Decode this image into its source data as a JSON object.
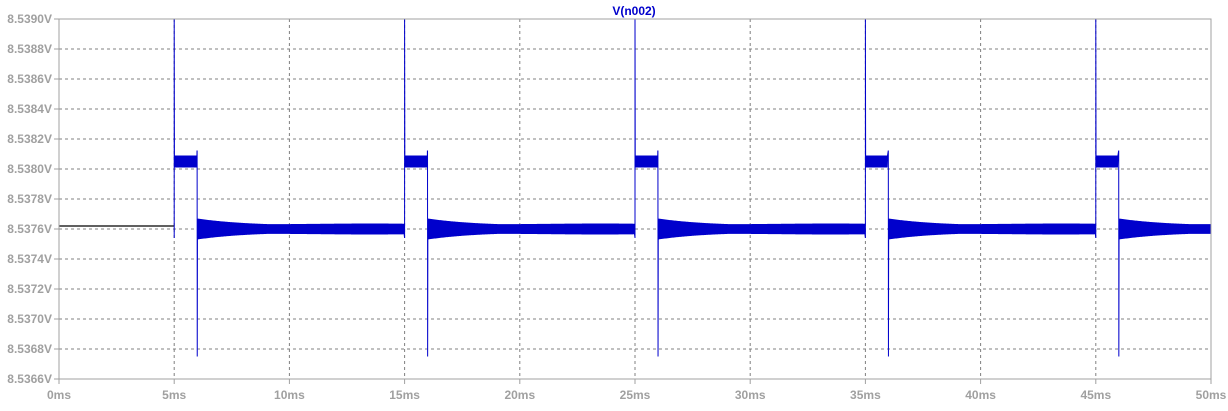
{
  "chart_data": {
    "type": "line",
    "title": "V(n002)",
    "xlabel": "",
    "ylabel": "",
    "xlim": [
      0,
      50
    ],
    "ylim": [
      8.5366,
      8.539
    ],
    "x_unit": "ms",
    "y_unit": "V",
    "grid": true,
    "x_ticks": [
      "0ms",
      "5ms",
      "10ms",
      "15ms",
      "20ms",
      "25ms",
      "30ms",
      "35ms",
      "40ms",
      "45ms",
      "50ms"
    ],
    "y_ticks": [
      "8.5366V",
      "8.5368V",
      "8.5370V",
      "8.5372V",
      "8.5374V",
      "8.5376V",
      "8.5378V",
      "8.5380V",
      "8.5382V",
      "8.5384V",
      "8.5386V",
      "8.5388V",
      "8.5390V"
    ],
    "series": [
      {
        "name": "V(n002)",
        "color": "#0000cc",
        "baseline": 8.5376,
        "pulse_level": 8.53805,
        "spike_high": 8.539,
        "spike_low": 8.53675,
        "pulse_starts": [
          5,
          15,
          25,
          35,
          45
        ],
        "pulse_ends": [
          6,
          16,
          26,
          36,
          46
        ],
        "initial_segment": {
          "x": [
            0,
            5
          ],
          "y": 8.53762,
          "color": "#000000"
        }
      }
    ]
  },
  "colors": {
    "axis": "#a0a0a0",
    "tick_label": "#a0a0a0",
    "grid": "#808080",
    "title": "#0000cc"
  }
}
